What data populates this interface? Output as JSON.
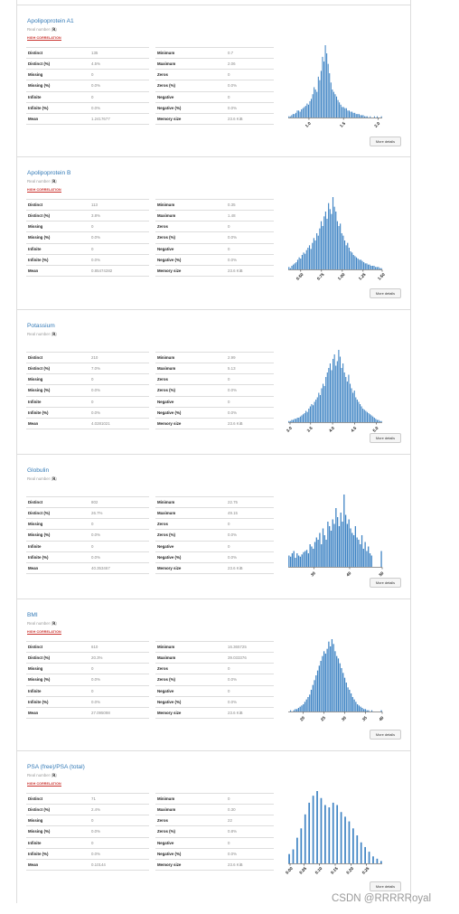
{
  "watermark": "CSDN @RRRRRoyal",
  "stat_labels": {
    "distinct": "Distinct",
    "distinct_pct": "Distinct (%)",
    "missing": "Missing",
    "missing_pct": "Missing (%)",
    "infinite": "Infinite",
    "infinite_pct": "Infinite (%)",
    "mean": "Mean",
    "minimum": "Minimum",
    "maximum": "Maximum",
    "zeros": "Zeros",
    "zeros_pct": "Zeros (%)",
    "negative": "Negative",
    "negative_pct": "Negative (%)",
    "memory": "Memory size"
  },
  "variables": [
    {
      "name": "Apolipoprotein A1",
      "type_prefix": "Real number (",
      "type_code": "ℝ",
      "type_suffix": ")",
      "alert": "HIGH CORRELATION",
      "stats": {
        "distinct": "135",
        "distinct_pct": "4.5%",
        "missing": "0",
        "missing_pct": "0.0%",
        "infinite": "0",
        "infinite_pct": "0.0%",
        "mean": "1.2417677",
        "minimum": "0.7",
        "maximum": "2.06",
        "zeros": "0",
        "zeros_pct": "0.0%",
        "negative": "0",
        "negative_pct": "0.0%",
        "memory": "23.6 KiB"
      },
      "more": "More details",
      "chart_data": {
        "type": "bar",
        "xlim": [
          0.7,
          2.06
        ],
        "xticks": [
          "1.0",
          "1.5",
          "2.0"
        ],
        "xtick_values": [
          1.0,
          1.5,
          2.0
        ],
        "values": [
          1,
          1,
          2,
          3,
          3,
          4,
          6,
          6,
          5,
          7,
          8,
          9,
          10,
          12,
          11,
          14,
          16,
          20,
          26,
          24,
          22,
          35,
          32,
          40,
          52,
          48,
          62,
          55,
          46,
          38,
          30,
          24,
          22,
          20,
          18,
          15,
          13,
          11,
          9,
          9,
          8,
          8,
          6,
          6,
          5,
          5,
          4,
          4,
          3,
          3,
          3,
          2,
          2,
          2,
          1,
          1,
          1,
          0,
          1,
          0,
          0,
          1,
          0,
          1,
          0,
          0,
          1
        ]
      }
    },
    {
      "name": "Apolipoprotein B",
      "type_prefix": "Real number (",
      "type_code": "ℝ",
      "type_suffix": ")",
      "alert": "HIGH CORRELATION",
      "stats": {
        "distinct": "113",
        "distinct_pct": "3.8%",
        "missing": "0",
        "missing_pct": "0.0%",
        "infinite": "0",
        "infinite_pct": "0.0%",
        "mean": "0.85474282",
        "minimum": "0.35",
        "maximum": "1.48",
        "zeros": "0",
        "zeros_pct": "0.0%",
        "negative": "0",
        "negative_pct": "0.0%",
        "memory": "23.6 KiB"
      },
      "more": "More details",
      "chart_data": {
        "type": "bar",
        "xlim": [
          0.35,
          1.48
        ],
        "xticks": [
          "0.50",
          "0.75",
          "1.00",
          "1.25",
          "1.50"
        ],
        "xtick_values": [
          0.5,
          0.75,
          1.0,
          1.25,
          1.5
        ],
        "values": [
          2,
          1,
          3,
          4,
          5,
          6,
          8,
          10,
          9,
          12,
          14,
          13,
          16,
          18,
          20,
          17,
          22,
          26,
          24,
          30,
          28,
          34,
          40,
          36,
          44,
          48,
          42,
          55,
          50,
          46,
          60,
          52,
          48,
          40,
          36,
          38,
          30,
          28,
          24,
          20,
          22,
          18,
          15,
          14,
          12,
          11,
          10,
          9,
          8,
          8,
          7,
          6,
          5,
          5,
          4,
          4,
          3,
          3,
          3,
          2,
          2,
          2,
          1,
          1
        ]
      }
    },
    {
      "name": "Potassium",
      "type_prefix": "Real number (",
      "type_code": "ℝ",
      "type_suffix": ")",
      "alert": "",
      "stats": {
        "distinct": "210",
        "distinct_pct": "7.0%",
        "missing": "0",
        "missing_pct": "0.0%",
        "infinite": "0",
        "infinite_pct": "0.0%",
        "mean": "4.0281021",
        "minimum": "2.99",
        "maximum": "5.13",
        "zeros": "0",
        "zeros_pct": "0.0%",
        "negative": "0",
        "negative_pct": "0.0%",
        "memory": "23.6 KiB"
      },
      "more": "More details",
      "chart_data": {
        "type": "bar",
        "xlim": [
          2.99,
          5.13
        ],
        "xticks": [
          "3.0",
          "3.5",
          "4.0",
          "4.5",
          "5.0"
        ],
        "xtick_values": [
          3.0,
          3.5,
          4.0,
          4.5,
          5.0
        ],
        "values": [
          1,
          1,
          2,
          2,
          3,
          3,
          4,
          4,
          5,
          6,
          7,
          8,
          10,
          9,
          12,
          14,
          16,
          15,
          18,
          20,
          22,
          26,
          24,
          30,
          34,
          32,
          40,
          44,
          48,
          52,
          46,
          56,
          60,
          50,
          54,
          64,
          58,
          48,
          52,
          44,
          40,
          36,
          42,
          34,
          30,
          26,
          28,
          22,
          20,
          18,
          16,
          14,
          12,
          11,
          10,
          9,
          8,
          7,
          6,
          5,
          4,
          3,
          2,
          2,
          1,
          1
        ]
      }
    },
    {
      "name": "Globulin",
      "type_prefix": "Real number (",
      "type_code": "ℝ",
      "type_suffix": ")",
      "alert": "",
      "stats": {
        "distinct": "802",
        "distinct_pct": "26.7%",
        "missing": "0",
        "missing_pct": "0.0%",
        "infinite": "0",
        "infinite_pct": "0.0%",
        "mean": "40.353467",
        "minimum": "22.75",
        "maximum": "49.15",
        "zeros": "0",
        "zeros_pct": "0.0%",
        "negative": "0",
        "negative_pct": "0.0%",
        "memory": "23.6 KiB"
      },
      "more": "More details",
      "chart_data": {
        "type": "bar",
        "xlim": [
          22.75,
          49.15
        ],
        "xticks": [
          "30",
          "40",
          "50"
        ],
        "xtick_values": [
          30,
          40,
          50
        ],
        "values": [
          10,
          9,
          12,
          14,
          8,
          12,
          10,
          9,
          11,
          13,
          14,
          15,
          12,
          20,
          18,
          16,
          22,
          26,
          24,
          30,
          20,
          34,
          28,
          24,
          40,
          36,
          32,
          42,
          38,
          52,
          44,
          36,
          48,
          40,
          64,
          46,
          38,
          42,
          34,
          30,
          28,
          36,
          26,
          24,
          20,
          28,
          16,
          22,
          14,
          18,
          12,
          10,
          0,
          0,
          0,
          0,
          0,
          14
        ]
      }
    },
    {
      "name": "BMI",
      "type_prefix": "Real number (",
      "type_code": "ℝ",
      "type_suffix": ")",
      "alert": "HIGH CORRELATION",
      "stats": {
        "distinct": "610",
        "distinct_pct": "20.3%",
        "missing": "0",
        "missing_pct": "0.0%",
        "infinite": "0",
        "infinite_pct": "0.0%",
        "mean": "27.095098",
        "minimum": "16.365725",
        "maximum": "39.033376",
        "zeros": "0",
        "zeros_pct": "0.0%",
        "negative": "0",
        "negative_pct": "0.0%",
        "memory": "23.6 KiB"
      },
      "more": "More details",
      "chart_data": {
        "type": "bar",
        "xlim": [
          16.365725,
          39.033376
        ],
        "xticks": [
          "20",
          "25",
          "30",
          "35",
          "40"
        ],
        "xtick_values": [
          20,
          25,
          30,
          35,
          40
        ],
        "values": [
          0,
          1,
          0,
          1,
          2,
          2,
          3,
          4,
          5,
          6,
          8,
          10,
          12,
          14,
          18,
          22,
          26,
          30,
          34,
          38,
          42,
          46,
          50,
          48,
          52,
          58,
          54,
          60,
          56,
          50,
          46,
          44,
          40,
          36,
          32,
          28,
          24,
          20,
          18,
          15,
          12,
          10,
          8,
          6,
          5,
          4,
          3,
          2,
          2,
          1,
          1,
          0,
          1,
          0,
          0,
          0,
          0,
          0,
          1
        ]
      }
    },
    {
      "name": "PSA (free)/PSA (total)",
      "type_prefix": "Real number (",
      "type_code": "ℝ",
      "type_suffix": ")",
      "alert": "HIGH CORRELATION",
      "stats": {
        "distinct": "71",
        "distinct_pct": "2.4%",
        "missing": "0",
        "missing_pct": "0.0%",
        "infinite": "0",
        "infinite_pct": "0.0%",
        "mean": "0.10144",
        "minimum": "0",
        "maximum": "0.30",
        "zeros": "22",
        "zeros_pct": "0.8%",
        "negative": "0",
        "negative_pct": "0.0%",
        "memory": "23.6 KiB"
      },
      "more": "More details",
      "chart_data": {
        "type": "bar",
        "xlim": [
          0,
          0.3
        ],
        "xticks": [
          "0.00",
          "0.05",
          "0.10",
          "0.15",
          "0.20",
          "0.25"
        ],
        "xtick_values": [
          0,
          0.05,
          0.1,
          0.15,
          0.2,
          0.25
        ],
        "values": [
          8,
          0,
          12,
          0,
          22,
          0,
          30,
          0,
          42,
          0,
          52,
          0,
          58,
          0,
          62,
          0,
          56,
          0,
          50,
          0,
          48,
          0,
          52,
          0,
          50,
          0,
          44,
          0,
          40,
          0,
          36,
          0,
          30,
          0,
          24,
          0,
          18,
          0,
          14,
          0,
          10,
          0,
          6,
          0,
          4,
          0,
          2
        ]
      }
    }
  ]
}
